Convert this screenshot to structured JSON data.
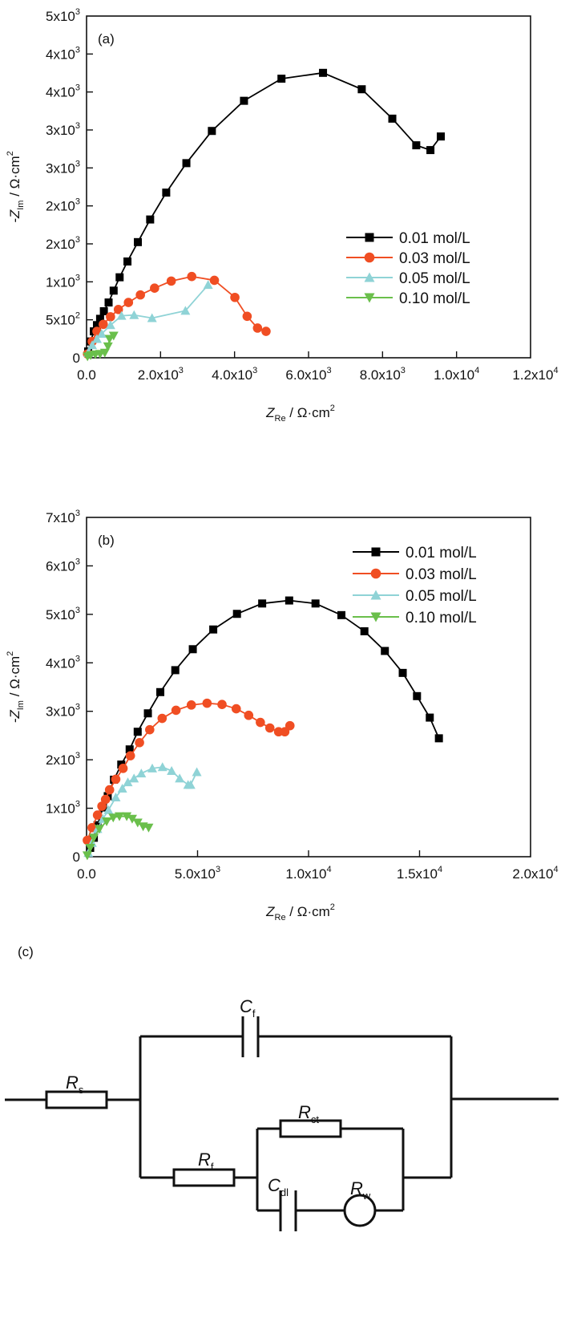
{
  "chart_data": [
    {
      "type": "line",
      "panel_label": "(a)",
      "xlabel": {
        "main": "Z",
        "sub": "Re",
        "rest": " / Ω·cm",
        "sup": "2"
      },
      "ylabel": {
        "main": "-Z",
        "sub": "Im",
        "rest": " / Ω·cm",
        "sup": "2"
      },
      "xlim": [
        0,
        12000
      ],
      "ylim": [
        0,
        4500
      ],
      "grid": false,
      "legend_position": "center-right",
      "xticks": [
        {
          "v": 0,
          "m": "0.0",
          "e": ""
        },
        {
          "v": 2000,
          "m": "2.0x10",
          "e": "3"
        },
        {
          "v": 4000,
          "m": "4.0x10",
          "e": "3"
        },
        {
          "v": 6000,
          "m": "6.0x10",
          "e": "3"
        },
        {
          "v": 8000,
          "m": "8.0x10",
          "e": "3"
        },
        {
          "v": 10000,
          "m": "1.0x10",
          "e": "4"
        },
        {
          "v": 12000,
          "m": "1.2x10",
          "e": "4"
        }
      ],
      "yticks": [
        {
          "v": 0,
          "m": "0",
          "e": ""
        },
        {
          "v": 500,
          "m": "5x10",
          "e": "2"
        },
        {
          "v": 1000,
          "m": "1x10",
          "e": "3"
        },
        {
          "v": 1500,
          "m": "2x10",
          "e": "3"
        },
        {
          "v": 2000,
          "m": "2x10",
          "e": "3"
        },
        {
          "v": 2500,
          "m": "3x10",
          "e": "3"
        },
        {
          "v": 3000,
          "m": "3x10",
          "e": "3"
        },
        {
          "v": 3500,
          "m": "4x10",
          "e": "3"
        },
        {
          "v": 4000,
          "m": "4x10",
          "e": "3"
        },
        {
          "v": 4500,
          "m": "5x10",
          "e": "3"
        }
      ],
      "series": [
        {
          "name": "0.01 mol/L",
          "color": "#000000",
          "marker": "square",
          "x": [
            43,
            111,
            196,
            281,
            366,
            468,
            596,
            732,
            894,
            1106,
            1387,
            1719,
            2153,
            2698,
            3387,
            4255,
            5268,
            6391,
            7438,
            8264,
            8911,
            9294,
            9574
          ],
          "y": [
            83,
            215,
            348,
            430,
            513,
            613,
            728,
            884,
            1060,
            1268,
            1523,
            1821,
            2175,
            2563,
            2987,
            3384,
            3675,
            3752,
            3536,
            3149,
            2798,
            2735,
            2914
          ]
        },
        {
          "name": "0.03 mol/L",
          "color": "#f04e23",
          "marker": "circle",
          "x": [
            26,
            153,
            281,
            451,
            647,
            860,
            1132,
            1455,
            1838,
            2289,
            2843,
            3455,
            4009,
            4340,
            4621,
            4851
          ],
          "y": [
            50,
            215,
            348,
            440,
            540,
            636,
            728,
            828,
            917,
            1010,
            1070,
            1020,
            795,
            546,
            391,
            348
          ]
        },
        {
          "name": "0.05 mol/L",
          "color": "#8fd3d6",
          "marker": "triangle-up",
          "x": [
            43,
            153,
            281,
            409,
            647,
            945,
            1285,
            1770,
            2672,
            3285
          ],
          "y": [
            66,
            166,
            248,
            315,
            430,
            553,
            563,
            523,
            619,
            960
          ]
        },
        {
          "name": "0.10 mol/L",
          "color": "#6abf4b",
          "marker": "triangle-down",
          "x": [
            26,
            111,
            238,
            366,
            494,
            579,
            621,
            732
          ],
          "y": [
            17,
            33,
            43,
            50,
            66,
            149,
            248,
            291
          ]
        }
      ]
    },
    {
      "type": "line",
      "panel_label": "(b)",
      "xlabel": {
        "main": "Z",
        "sub": "Re",
        "rest": " / Ω·cm",
        "sup": "2"
      },
      "ylabel": {
        "main": "-Z",
        "sub": "Im",
        "rest": " / Ω·cm",
        "sup": "2"
      },
      "xlim": [
        0,
        20000
      ],
      "ylim": [
        0,
        7000
      ],
      "grid": false,
      "legend_position": "top-right",
      "xticks": [
        {
          "v": 0,
          "m": "0.0",
          "e": ""
        },
        {
          "v": 5000,
          "m": "5.0x10",
          "e": "3"
        },
        {
          "v": 10000,
          "m": "1.0x10",
          "e": "4"
        },
        {
          "v": 15000,
          "m": "1.5x10",
          "e": "4"
        },
        {
          "v": 20000,
          "m": "2.0x10",
          "e": "4"
        }
      ],
      "yticks": [
        {
          "v": 0,
          "m": "0",
          "e": ""
        },
        {
          "v": 1000,
          "m": "1x10",
          "e": "3"
        },
        {
          "v": 2000,
          "m": "2x10",
          "e": "3"
        },
        {
          "v": 3000,
          "m": "3x10",
          "e": "3"
        },
        {
          "v": 4000,
          "m": "4x10",
          "e": "3"
        },
        {
          "v": 5000,
          "m": "5x10",
          "e": "3"
        },
        {
          "v": 6000,
          "m": "6x10",
          "e": "3"
        },
        {
          "v": 7000,
          "m": "7x10",
          "e": "3"
        }
      ],
      "series": [
        {
          "name": "0.01 mol/L",
          "color": "#000000",
          "marker": "square",
          "x": [
            164,
            329,
            493,
            740,
            954,
            1234,
            1563,
            1941,
            2303,
            2763,
            3322,
            3997,
            4786,
            5707,
            6776,
            7911,
            9128,
            10313,
            11480,
            12516,
            13438,
            14243,
            14885,
            15461,
            15872
          ],
          "y": [
            182,
            391,
            651,
            1016,
            1250,
            1589,
            1901,
            2214,
            2578,
            2958,
            3396,
            3849,
            4281,
            4688,
            5010,
            5224,
            5286,
            5224,
            4984,
            4651,
            4245,
            3792,
            3313,
            2870,
            2443
          ]
        },
        {
          "name": "0.03 mol/L",
          "color": "#f04e23",
          "marker": "circle",
          "x": [
            33,
            247,
            493,
            691,
            855,
            1036,
            1316,
            1645,
            1974,
            2385,
            2845,
            3405,
            4030,
            4720,
            5428,
            6102,
            6743,
            7303,
            7829,
            8257,
            8651,
            8931,
            9161
          ],
          "y": [
            339,
            599,
            859,
            1042,
            1182,
            1380,
            1599,
            1823,
            2083,
            2354,
            2620,
            2854,
            3021,
            3130,
            3167,
            3141,
            3052,
            2917,
            2771,
            2656,
            2578,
            2578,
            2703
          ]
        },
        {
          "name": "0.05 mol/L",
          "color": "#8fd3d6",
          "marker": "triangle-up",
          "x": [
            82,
            247,
            493,
            740,
            987,
            1316,
            1612,
            1859,
            2138,
            2467,
            2961,
            3421,
            3832,
            4194,
            4572,
            4687,
            4967
          ],
          "y": [
            78,
            286,
            573,
            781,
            964,
            1224,
            1406,
            1536,
            1615,
            1719,
            1823,
            1849,
            1771,
            1615,
            1484,
            1484,
            1745
          ]
        },
        {
          "name": "0.10 mol/L",
          "color": "#6abf4b",
          "marker": "triangle-down",
          "x": [
            33,
            164,
            329,
            576,
            905,
            1201,
            1480,
            1809,
            2056,
            2303,
            2549,
            2796
          ],
          "y": [
            26,
            182,
            391,
            573,
            729,
            807,
            833,
            833,
            781,
            703,
            625,
            599
          ]
        }
      ]
    }
  ],
  "circuit": {
    "panel_label": "(c)",
    "elements": [
      {
        "id": "Rs",
        "main": "R",
        "sub": "s"
      },
      {
        "id": "Cf",
        "main": "C",
        "sub": "f"
      },
      {
        "id": "Rf",
        "main": "R",
        "sub": "f"
      },
      {
        "id": "Rct",
        "main": "R",
        "sub": "ct"
      },
      {
        "id": "Cdl",
        "main": "C",
        "sub": "dl"
      },
      {
        "id": "Rw",
        "main": "R",
        "sub": "w"
      }
    ]
  }
}
